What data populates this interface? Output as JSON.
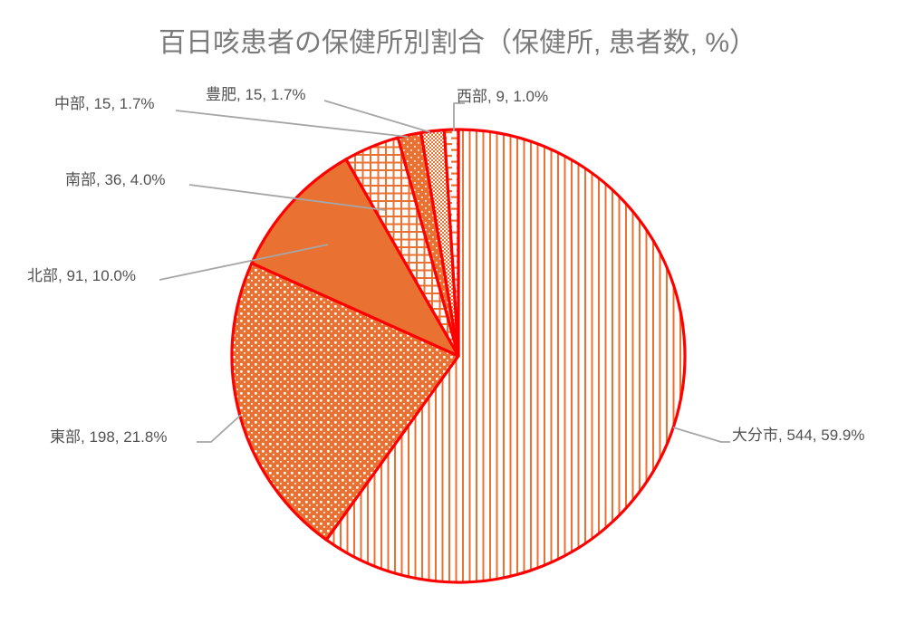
{
  "page": {
    "background": "#ffffff"
  },
  "colors": {
    "accent": "#E97132",
    "slice_border": "#FF0000",
    "leader_line": "#A6A6A6",
    "label_text": "#525252",
    "title_text": "#7B7B7B"
  },
  "chart_data": {
    "type": "pie",
    "title": "百日咳患者の保健所別割合（保健所, 患者数, %）",
    "label_format": "保健所, 患者数, %",
    "legend": "none",
    "start_angle_deg": 0,
    "direction": "clockwise",
    "total_patients": 908,
    "slices": [
      {
        "key": "oita-city",
        "name": "大分市",
        "value": 544,
        "pct": 59.9,
        "label": "大分市, 544, 59.9%",
        "pattern": "vertical-stripes"
      },
      {
        "key": "tobu",
        "name": "東部",
        "value": 198,
        "pct": 21.8,
        "label": "東部, 198, 21.8%",
        "pattern": "white-dots-on-orange"
      },
      {
        "key": "hokubu",
        "name": "北部",
        "value": 91,
        "pct": 10.0,
        "label": "北部, 91, 10.0%",
        "pattern": "solid"
      },
      {
        "key": "nanbu",
        "name": "南部",
        "value": 36,
        "pct": 4.0,
        "label": "南部, 36, 4.0%",
        "pattern": "grid"
      },
      {
        "key": "chubu",
        "name": "中部",
        "value": 15,
        "pct": 1.7,
        "label": "中部, 15, 1.7%",
        "pattern": "sparse-white-dots"
      },
      {
        "key": "hohi",
        "name": "豊肥",
        "value": 15,
        "pct": 1.7,
        "label": "豊肥, 15, 1.7%",
        "pattern": "fine-checker"
      },
      {
        "key": "seibu",
        "name": "西部",
        "value": 9,
        "pct": 1.0,
        "label": "西部, 9, 1.0%",
        "pattern": "horizontal-dashes"
      }
    ]
  }
}
